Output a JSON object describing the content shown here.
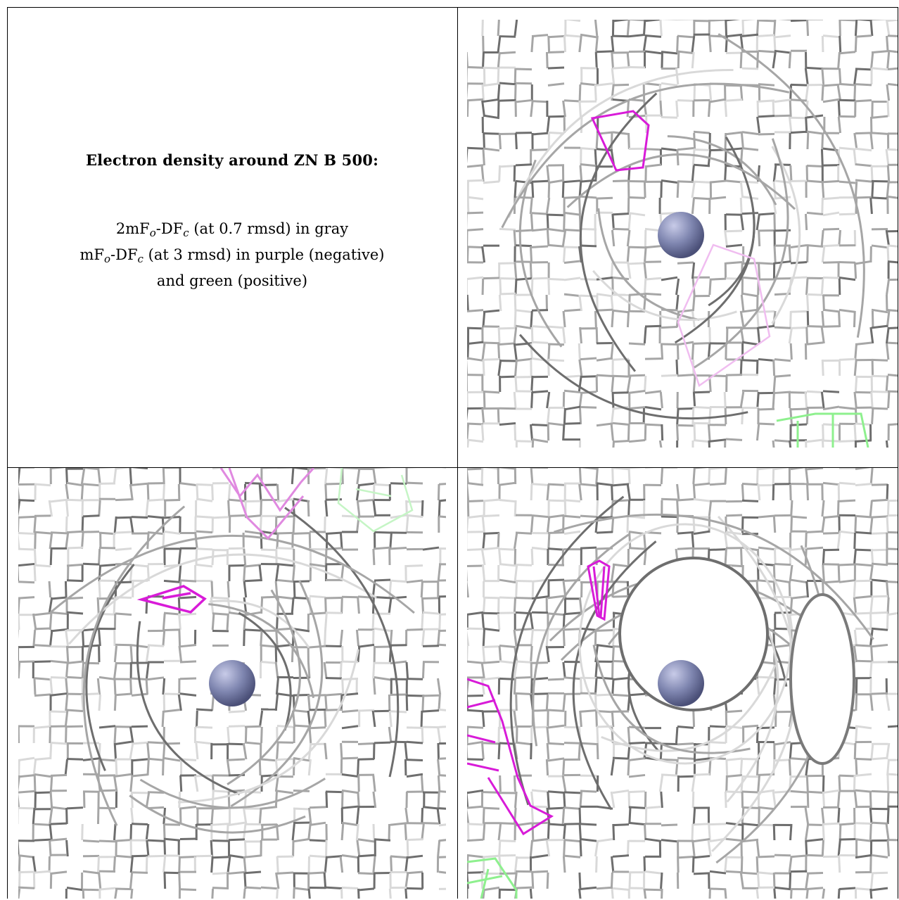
{
  "caption": {
    "title": "Electron density around ZN B 500:",
    "line1": {
      "a": "2mF",
      "b": "o",
      "c": "-DF",
      "d": "c",
      "e": " (at 0.7 rmsd) in gray"
    },
    "line2": {
      "a": "mF",
      "b": "o",
      "c": "-DF",
      "d": "c",
      "e": " (at 3 rmsd) in purple (negative)"
    },
    "line3": "and green (positive)"
  },
  "colors": {
    "mesh_dark": "#6e6e6e",
    "mesh_mid": "#a6a6a6",
    "mesh_light": "#d9d9d9",
    "negative": "#d81bd8",
    "positive": "#8ef08e",
    "atom": "#7f86b0"
  },
  "panels": [
    {
      "id": "top-right",
      "atom": "zinc-atom"
    },
    {
      "id": "bottom-left",
      "atom": "zinc-atom"
    },
    {
      "id": "bottom-right",
      "atom": "zinc-atom"
    }
  ]
}
